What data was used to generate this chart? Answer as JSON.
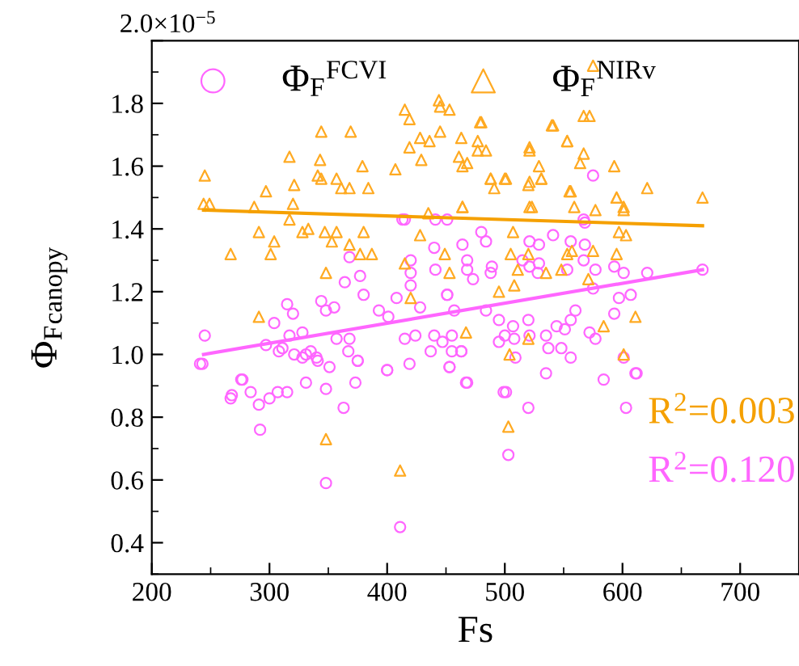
{
  "chart_data": {
    "type": "scatter",
    "xlabel": "Fs",
    "ylabel": "Φ$_{F}$$_{canopy}$",
    "xlim": [
      200,
      750
    ],
    "xticks": [
      200,
      300,
      400,
      500,
      600,
      700
    ],
    "ylim": [
      0.3,
      2.0
    ],
    "yticks": [
      0.4,
      0.6,
      0.8,
      {
        "value": 1.0,
        "label": "1.0"
      },
      1.2,
      1.4,
      1.6,
      1.8,
      {
        "value": 2.0,
        "label": null
      }
    ],
    "grid": false,
    "legend": "top left",
    "annotations": [
      "R$^{2}$=0.003",
      "R$^{2}$=0.120",
      "2.0×10$^{−5}$"
    ],
    "series": [
      {
        "name": "Φ$_{F}$$^{FCVI}$",
        "type": "scatter",
        "marker": "circle",
        "color": "#ff66ff",
        "x": [
          245,
          243,
          277,
          304,
          315,
          320,
          317,
          328,
          331,
          344,
          348,
          357,
          368,
          364,
          377,
          380,
          368,
          393,
          401,
          408,
          420,
          420,
          415,
          428,
          441,
          440,
          451,
          457,
          440,
          455,
          420,
          415,
          375,
          400,
          341,
          331,
          297,
          308,
          355,
          241,
          267,
          268,
          276,
          284,
          291,
          292,
          300,
          307,
          315,
          311,
          321,
          328,
          335,
          340,
          348,
          351,
          348,
          363,
          367,
          373,
          375,
          400,
          411,
          419,
          437,
          447,
          453,
          463,
          424,
          455,
          575,
          480,
          484,
          464,
          468,
          468,
          473,
          489,
          488,
          521,
          529,
          515,
          521,
          529,
          528,
          541,
          556,
          568,
          567,
          553,
          577,
          568,
          593,
          601,
          621,
          668,
          607,
          597,
          593,
          560,
          556,
          575,
          544,
          551,
          507,
          495,
          484,
          500,
          508,
          495,
          520,
          521,
          535,
          537,
          548,
          572,
          577,
          556,
          509,
          468,
          463,
          453,
          535,
          584,
          611,
          467,
          451,
          499,
          501,
          520,
          603,
          601,
          612,
          503,
          413,
          441,
          451,
          567
        ],
        "values": [
          1.06,
          0.97,
          0.92,
          1.1,
          1.16,
          1.13,
          1.06,
          1.07,
          1.0,
          1.17,
          1.14,
          1.05,
          1.05,
          1.23,
          1.25,
          1.19,
          1.31,
          1.14,
          1.12,
          1.18,
          1.22,
          1.26,
          1.05,
          1.15,
          1.27,
          1.34,
          1.19,
          1.14,
          1.06,
          1.01,
          1.3,
          1.43,
          0.98,
          0.95,
          0.98,
          0.91,
          1.03,
          1.01,
          1.15,
          0.97,
          0.86,
          0.87,
          0.92,
          0.88,
          0.84,
          0.76,
          0.86,
          0.88,
          0.88,
          1.02,
          1.0,
          0.99,
          1.01,
          0.99,
          0.89,
          0.96,
          0.59,
          0.83,
          1.01,
          0.91,
          0.98,
          0.95,
          0.45,
          0.97,
          1.01,
          1.04,
          0.96,
          1.01,
          1.06,
          1.06,
          1.57,
          1.39,
          1.36,
          1.35,
          1.3,
          1.27,
          1.24,
          1.28,
          1.26,
          1.36,
          1.35,
          1.3,
          1.28,
          1.29,
          1.26,
          1.38,
          1.36,
          1.35,
          1.3,
          1.27,
          1.27,
          1.42,
          1.28,
          1.26,
          1.26,
          1.27,
          1.19,
          1.18,
          1.13,
          1.14,
          1.11,
          1.21,
          1.09,
          1.08,
          1.09,
          1.11,
          1.14,
          1.06,
          1.05,
          1.04,
          1.11,
          1.06,
          1.06,
          1.02,
          1.02,
          1.07,
          1.05,
          0.99,
          0.99,
          0.91,
          1.01,
          0.96,
          0.94,
          0.92,
          0.94,
          0.91,
          1.19,
          0.88,
          0.88,
          0.83,
          0.83,
          0.99,
          0.94,
          0.68,
          1.43,
          1.43,
          1.43,
          1.43
        ]
      },
      {
        "name": "Φ$_{F}$$^{NIRv}$",
        "type": "scatter",
        "marker": "triangle",
        "color": "#ffaa22",
        "x": [
          575,
          245,
          244,
          249,
          317,
          344,
          343,
          341,
          344,
          369,
          379,
          297,
          321,
          357,
          361,
          368,
          384,
          407,
          415,
          419,
          419,
          428,
          436,
          429,
          444,
          445,
          453,
          445,
          463,
          464,
          468,
          479,
          477,
          484,
          488,
          491,
          501,
          521,
          529,
          521,
          531,
          540,
          553,
          555,
          567,
          572,
          567,
          564,
          593,
          595,
          621,
          668,
          601,
          523,
          464,
          435,
          320,
          287,
          291,
          267,
          301,
          304,
          317,
          328,
          333,
          347,
          357,
          353,
          368,
          380,
          348,
          377,
          387,
          291,
          415,
          428,
          449,
          453,
          420,
          461,
          477,
          521,
          541,
          553,
          488,
          500,
          520,
          531,
          556,
          595,
          464,
          521,
          559,
          601,
          507,
          577,
          597,
          603,
          575,
          595,
          557,
          553,
          505,
          520,
          511,
          535,
          548,
          495,
          508,
          571,
          611,
          584,
          520,
          467,
          601,
          504,
          480,
          503,
          348,
          411
        ],
        "values": [
          1.92,
          1.57,
          1.48,
          1.48,
          1.63,
          1.71,
          1.62,
          1.57,
          1.56,
          1.71,
          1.6,
          1.52,
          1.54,
          1.56,
          1.53,
          1.53,
          1.53,
          1.59,
          1.78,
          1.75,
          1.66,
          1.69,
          1.68,
          1.62,
          1.81,
          1.79,
          1.78,
          1.71,
          1.69,
          1.6,
          1.61,
          1.74,
          1.68,
          1.65,
          1.56,
          1.53,
          1.56,
          1.66,
          1.6,
          1.55,
          1.56,
          1.73,
          1.68,
          1.52,
          1.76,
          1.76,
          1.64,
          1.61,
          1.6,
          1.5,
          1.53,
          1.5,
          1.47,
          1.47,
          1.47,
          1.45,
          1.48,
          1.47,
          1.39,
          1.32,
          1.32,
          1.36,
          1.43,
          1.39,
          1.4,
          1.39,
          1.39,
          1.36,
          1.35,
          1.39,
          1.26,
          1.32,
          1.32,
          1.12,
          1.29,
          1.38,
          1.32,
          1.26,
          1.18,
          1.63,
          1.65,
          1.65,
          1.73,
          1.68,
          1.56,
          1.56,
          1.54,
          1.56,
          1.52,
          1.5,
          1.47,
          1.47,
          1.47,
          1.46,
          1.39,
          1.46,
          1.39,
          1.38,
          1.33,
          1.32,
          1.33,
          1.32,
          1.32,
          1.32,
          1.27,
          1.26,
          1.27,
          1.2,
          1.22,
          1.24,
          1.12,
          1.09,
          1.05,
          1.07,
          1.0,
          1.0,
          1.74,
          0.77,
          0.73,
          0.63
        ]
      },
      {
        "type": "line",
        "marker": "none",
        "color": "#f5a000",
        "x": [
          244,
          668
        ],
        "values": [
          1.46,
          1.41
        ]
      },
      {
        "type": "line",
        "marker": "none",
        "color": "#ff66ff",
        "x": [
          244,
          668
        ],
        "values": [
          1.0,
          1.27
        ]
      }
    ]
  }
}
